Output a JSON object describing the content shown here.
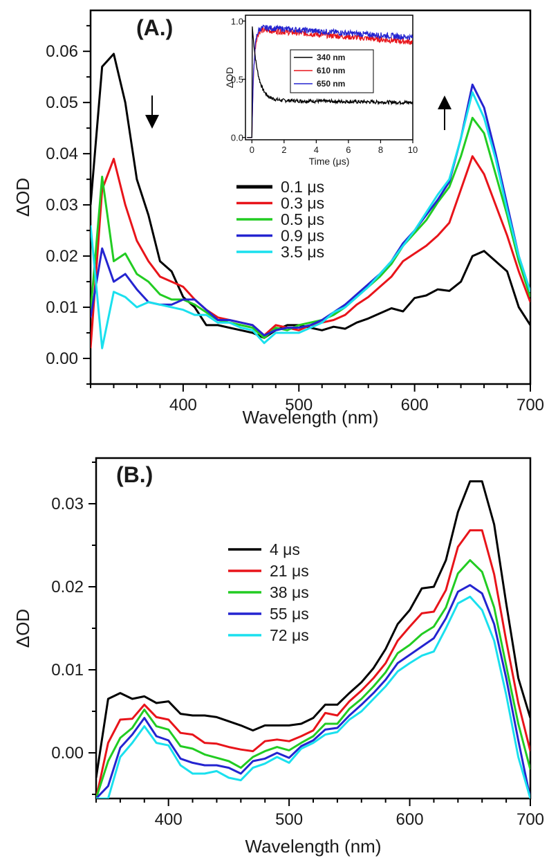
{
  "chart_data": [
    {
      "type": "line",
      "panel_label": "(A.)",
      "xlabel": "Wavelength  (nm)",
      "ylabel": "ΔOD",
      "xlim": [
        320,
        700
      ],
      "ylim": [
        -0.005,
        0.068
      ],
      "xticks": [
        400,
        500,
        600,
        700
      ],
      "yticks": [
        0.0,
        0.01,
        0.02,
        0.03,
        0.04,
        0.05,
        0.06
      ],
      "ytick_labels": [
        "0.00",
        "0.01",
        "0.02",
        "0.03",
        "0.04",
        "0.05",
        "0.06"
      ],
      "arrows": [
        "down at ~370 nm",
        "up at ~625 nm"
      ],
      "x": [
        320,
        330,
        340,
        350,
        360,
        370,
        380,
        390,
        400,
        410,
        420,
        430,
        440,
        450,
        460,
        470,
        480,
        490,
        500,
        510,
        520,
        530,
        540,
        550,
        560,
        570,
        580,
        590,
        600,
        610,
        620,
        630,
        640,
        650,
        660,
        670,
        680,
        690,
        700
      ],
      "series": [
        {
          "name": "0.1 μs",
          "color": "#000000",
          "values": [
            0.03,
            0.057,
            0.0595,
            0.05,
            0.035,
            0.028,
            0.019,
            0.017,
            0.012,
            0.01,
            0.0065,
            0.0065,
            0.006,
            0.0055,
            0.005,
            0.004,
            0.0055,
            0.0065,
            0.0065,
            0.006,
            0.0055,
            0.0062,
            0.0058,
            0.007,
            0.0078,
            0.0088,
            0.0098,
            0.0092,
            0.0118,
            0.0123,
            0.0135,
            0.0132,
            0.015,
            0.02,
            0.021,
            0.019,
            0.017,
            0.01,
            0.0065
          ]
        },
        {
          "name": "0.3 μs",
          "color": "#e8141a",
          "values": [
            0.002,
            0.033,
            0.039,
            0.03,
            0.023,
            0.019,
            0.016,
            0.015,
            0.014,
            0.0115,
            0.0095,
            0.008,
            0.0075,
            0.007,
            0.0065,
            0.0045,
            0.0065,
            0.006,
            0.0055,
            0.0065,
            0.007,
            0.0075,
            0.0085,
            0.0105,
            0.012,
            0.014,
            0.016,
            0.019,
            0.0205,
            0.022,
            0.024,
            0.0265,
            0.033,
            0.0395,
            0.036,
            0.03,
            0.024,
            0.017,
            0.011
          ]
        },
        {
          "name": "0.5 μs",
          "color": "#22cc22",
          "values": [
            0.009,
            0.0355,
            0.019,
            0.0205,
            0.0165,
            0.015,
            0.0125,
            0.0115,
            0.0115,
            0.0105,
            0.009,
            0.0075,
            0.007,
            0.0065,
            0.006,
            0.004,
            0.006,
            0.0055,
            0.0065,
            0.007,
            0.0075,
            0.0085,
            0.01,
            0.012,
            0.014,
            0.016,
            0.0185,
            0.022,
            0.0245,
            0.027,
            0.0305,
            0.0335,
            0.0395,
            0.047,
            0.044,
            0.036,
            0.028,
            0.019,
            0.012
          ]
        },
        {
          "name": "0.9 μs",
          "color": "#2424d0",
          "values": [
            0.008,
            0.0215,
            0.015,
            0.0165,
            0.0135,
            0.011,
            0.0105,
            0.0105,
            0.0115,
            0.0115,
            0.0095,
            0.0075,
            0.0075,
            0.007,
            0.0065,
            0.0045,
            0.0055,
            0.006,
            0.006,
            0.0065,
            0.0075,
            0.009,
            0.0105,
            0.0125,
            0.0145,
            0.0165,
            0.019,
            0.0225,
            0.025,
            0.028,
            0.031,
            0.0345,
            0.043,
            0.0535,
            0.049,
            0.04,
            0.03,
            0.02,
            0.013
          ]
        },
        {
          "name": "3.5 μs",
          "color": "#1ae0ee",
          "values": [
            0.026,
            0.002,
            0.013,
            0.012,
            0.01,
            0.011,
            0.0105,
            0.01,
            0.0095,
            0.0085,
            0.0085,
            0.007,
            0.007,
            0.006,
            0.0055,
            0.003,
            0.005,
            0.005,
            0.005,
            0.006,
            0.007,
            0.009,
            0.01,
            0.012,
            0.014,
            0.0165,
            0.019,
            0.022,
            0.025,
            0.0285,
            0.032,
            0.035,
            0.043,
            0.052,
            0.047,
            0.039,
            0.029,
            0.02,
            0.013
          ]
        }
      ],
      "inset": {
        "type": "line",
        "xlabel": "Time (μs)",
        "ylabel": "ΔOD",
        "xlim": [
          -0.4,
          10
        ],
        "ylim": [
          -0.02,
          1.05
        ],
        "xticks": [
          0,
          2,
          4,
          6,
          8,
          10
        ],
        "yticks": [
          0.0,
          0.5,
          1.0
        ],
        "ytick_labels": [
          "0.0",
          "0.5",
          "1.0"
        ],
        "series": [
          {
            "name": "340 nm",
            "color": "#000000",
            "values_desc": "peak 1.0 at t=0, fast decay to ~0.4 by 1 μs, slow decay to ~0.30 at 10 μs"
          },
          {
            "name": "610 nm",
            "color": "#e8141a",
            "values_desc": "rise to ~0.93 within 0.5 μs, slow decay to ~0.82 at 10 μs"
          },
          {
            "name": "650 nm",
            "color": "#2424d0",
            "values_desc": "rise to ~0.95 within 0.5 μs, slow decay to ~0.86 at 10 μs"
          }
        ],
        "legend_position": "center"
      },
      "legend_position": "center"
    },
    {
      "type": "line",
      "panel_label": "(B.)",
      "xlabel": "Wavelength  (nm)",
      "ylabel": "ΔOD",
      "xlim": [
        340,
        700
      ],
      "ylim": [
        -0.0055,
        0.0355
      ],
      "xticks": [
        400,
        500,
        600,
        700
      ],
      "yticks": [
        0.0,
        0.01,
        0.02,
        0.03
      ],
      "ytick_labels": [
        "0.00",
        "0.01",
        "0.02",
        "0.03"
      ],
      "x": [
        340,
        350,
        360,
        370,
        380,
        390,
        400,
        410,
        420,
        430,
        440,
        450,
        460,
        470,
        480,
        490,
        500,
        510,
        520,
        530,
        540,
        550,
        560,
        570,
        580,
        590,
        600,
        610,
        620,
        630,
        640,
        650,
        660,
        670,
        680,
        690,
        700
      ],
      "series": [
        {
          "name": "4 μs",
          "color": "#000000",
          "values": [
            -0.003,
            0.0065,
            0.0072,
            0.0065,
            0.0068,
            0.006,
            0.0062,
            0.0047,
            0.0045,
            0.0045,
            0.0043,
            0.0038,
            0.0033,
            0.0027,
            0.0033,
            0.0033,
            0.0033,
            0.0035,
            0.0042,
            0.0058,
            0.0058,
            0.0072,
            0.0085,
            0.0102,
            0.0125,
            0.0155,
            0.0172,
            0.0198,
            0.02,
            0.0232,
            0.029,
            0.0327,
            0.0327,
            0.0275,
            0.018,
            0.009,
            0.0042
          ]
        },
        {
          "name": "21 μs",
          "color": "#e8141a",
          "values": [
            -0.0055,
            0.0012,
            0.004,
            0.0041,
            0.0058,
            0.0043,
            0.004,
            0.0024,
            0.0022,
            0.0012,
            0.0011,
            0.0007,
            0.0004,
            0.0002,
            0.0014,
            0.0016,
            0.0014,
            0.002,
            0.0027,
            0.0048,
            0.0045,
            0.0062,
            0.0075,
            0.009,
            0.0108,
            0.0135,
            0.0152,
            0.0168,
            0.017,
            0.0196,
            0.0248,
            0.0268,
            0.0268,
            0.0215,
            0.0135,
            0.006,
            0.0002
          ]
        },
        {
          "name": "38 μs",
          "color": "#22cc22",
          "values": [
            -0.0055,
            -0.001,
            0.0018,
            0.003,
            0.0052,
            0.0032,
            0.0028,
            0.0008,
            0.0005,
            -0.0002,
            -0.0006,
            -0.001,
            -0.0018,
            -0.0005,
            0.0002,
            0.0007,
            0.0003,
            0.0012,
            0.002,
            0.0035,
            0.0035,
            0.0053,
            0.0065,
            0.008,
            0.0097,
            0.012,
            0.013,
            0.0143,
            0.0152,
            0.0175,
            0.0216,
            0.0232,
            0.0218,
            0.0175,
            0.0105,
            0.0035,
            -0.002
          ]
        },
        {
          "name": "55 μs",
          "color": "#2424d0",
          "values": [
            -0.0055,
            -0.004,
            0.0006,
            0.0022,
            0.0042,
            0.002,
            0.0015,
            -0.0007,
            -0.0012,
            -0.0015,
            -0.0015,
            -0.0018,
            -0.0025,
            -0.001,
            -0.0007,
            0.0,
            -0.0006,
            0.0008,
            0.0015,
            0.0028,
            0.003,
            0.0045,
            0.0058,
            0.0072,
            0.0088,
            0.0108,
            0.0118,
            0.0128,
            0.0138,
            0.0162,
            0.0194,
            0.0202,
            0.0192,
            0.0155,
            0.009,
            0.0015,
            -0.0055
          ]
        },
        {
          "name": "72 μs",
          "color": "#1ae0ee",
          "values": [
            -0.0055,
            -0.0055,
            -0.0005,
            0.0012,
            0.0032,
            0.0012,
            0.0009,
            -0.0015,
            -0.0025,
            -0.0025,
            -0.0022,
            -0.003,
            -0.0033,
            -0.0018,
            -0.0013,
            -0.0005,
            -0.0012,
            0.0005,
            0.0012,
            0.0022,
            0.0025,
            0.004,
            0.005,
            0.0065,
            0.008,
            0.0098,
            0.0108,
            0.0117,
            0.0122,
            0.015,
            0.018,
            0.0188,
            0.0172,
            0.0135,
            0.007,
            -0.0005,
            -0.0055
          ]
        }
      ],
      "legend_position": "center-left"
    }
  ]
}
